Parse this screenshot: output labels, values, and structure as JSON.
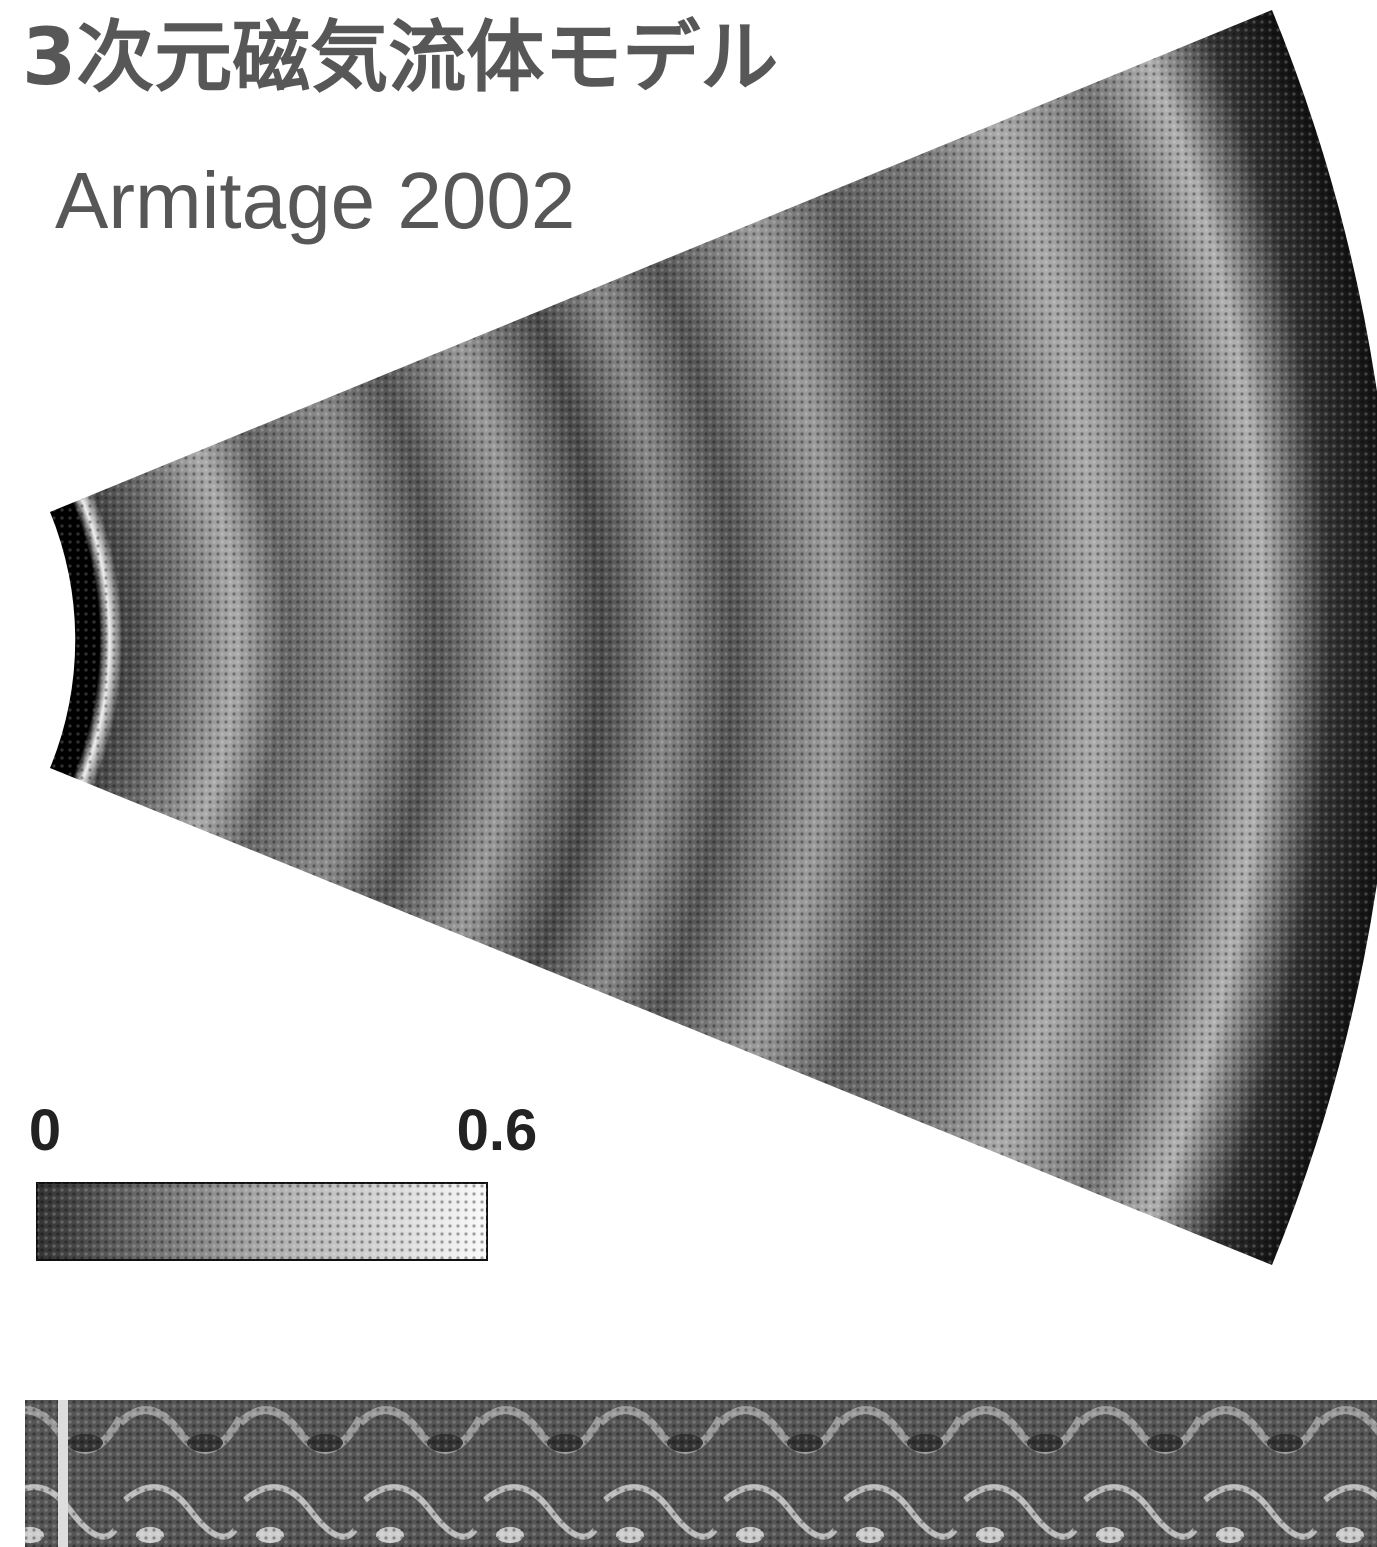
{
  "header": {
    "title": "3次元磁気流体モデル",
    "subtitle": "Armitage 2002"
  },
  "colorbar": {
    "ticks": [
      0,
      0.6
    ]
  }
}
